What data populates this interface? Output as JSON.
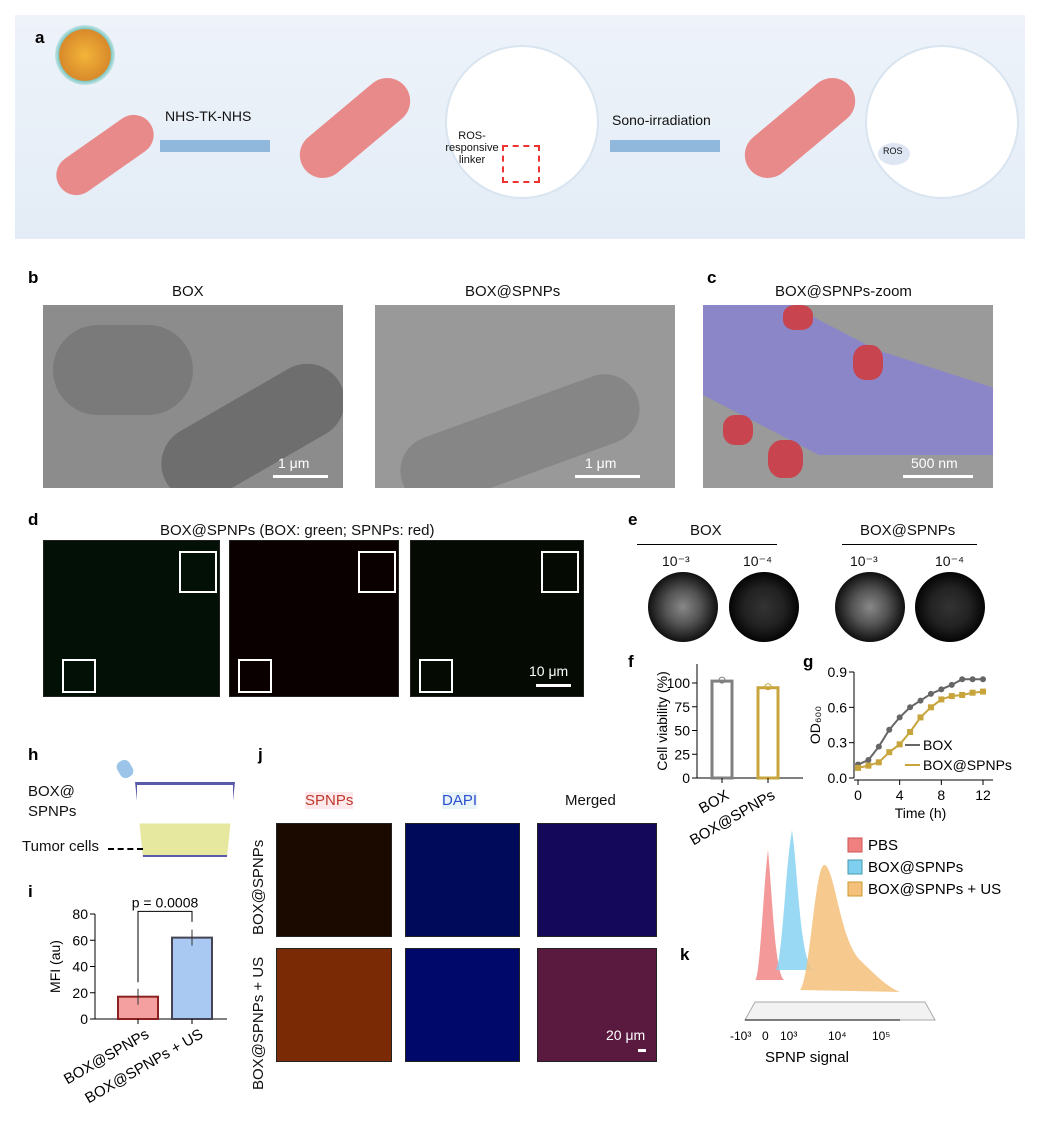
{
  "panel_labels": [
    "a",
    "b",
    "c",
    "d",
    "e",
    "f",
    "g",
    "h",
    "i",
    "j",
    "k"
  ],
  "a": {
    "linker_label": "NHS-TK-NHS",
    "ros_linker": "ROS-responsive linker",
    "step2": "Sono-irradiation",
    "ros": "ROS"
  },
  "b": {
    "title1": "BOX",
    "title2": "BOX@SPNPs",
    "scale1": "1 μm",
    "scale2": "1 μm"
  },
  "c": {
    "title": "BOX@SPNPs-zoom",
    "scale": "500 nm"
  },
  "d": {
    "title": "BOX@SPNPs (BOX: green; SPNPs: red)",
    "scale": "10 μm"
  },
  "e": {
    "group1": "BOX",
    "group2": "BOX@SPNPs",
    "dil1": "10⁻³",
    "dil2": "10⁻⁴"
  },
  "h": {
    "label1": "BOX@",
    "label2": "SPNPs",
    "label3": "Tumor cells"
  },
  "j": {
    "col1": "SPNPs",
    "col2": "DAPI",
    "col3": "Merged",
    "row1": "BOX@SPNPs",
    "row2": "BOX@SPNPs + US",
    "scale": "20 μm"
  },
  "k": {
    "legend": [
      "PBS",
      "BOX@SPNPs",
      "BOX@SPNPs + US"
    ],
    "colors": [
      "#f08080",
      "#7fd0f0",
      "#f5c07a"
    ],
    "xlabel": "SPNP signal",
    "ticks": [
      "-10³",
      "0",
      "10³",
      "10⁴",
      "10⁵"
    ]
  },
  "chart_data": [
    {
      "panel": "f",
      "type": "bar",
      "categories": [
        "BOX",
        "BOX@SPNPs"
      ],
      "values": [
        102,
        95
      ],
      "ylabel": "Cell viability (%)",
      "ylim": [
        0,
        120
      ],
      "yticks": [
        "0",
        "25",
        "50",
        "75",
        "100"
      ],
      "colors": [
        "#808080",
        "#c8a53c"
      ]
    },
    {
      "panel": "g",
      "type": "line",
      "xlabel": "Time (h)",
      "ylabel": "OD600",
      "xlim": [
        0,
        12
      ],
      "ylim": [
        0,
        0.9
      ],
      "xticks": [
        "0",
        "4",
        "8",
        "12"
      ],
      "yticks": [
        "0.0",
        "0.3",
        "0.6",
        "0.9"
      ],
      "x": [
        0,
        1,
        2,
        3,
        4,
        5,
        6,
        7,
        8,
        9,
        10,
        11,
        12
      ],
      "series": [
        {
          "name": "BOX",
          "color": "#666666",
          "values": [
            0.12,
            0.16,
            0.28,
            0.43,
            0.54,
            0.63,
            0.69,
            0.75,
            0.79,
            0.83,
            0.88,
            0.88,
            0.88
          ]
        },
        {
          "name": "BOX@SPNPs",
          "color": "#c8a53c",
          "values": [
            0.09,
            0.11,
            0.14,
            0.23,
            0.3,
            0.41,
            0.54,
            0.63,
            0.7,
            0.73,
            0.74,
            0.76,
            0.77
          ]
        }
      ]
    },
    {
      "panel": "i",
      "type": "bar",
      "categories": [
        "BOX@SPNPs",
        "BOX@SPNPs + US"
      ],
      "values": [
        17,
        62
      ],
      "ylabel": "MFI (au)",
      "ylim": [
        0,
        80
      ],
      "yticks": [
        "0",
        "20",
        "40",
        "60",
        "80"
      ],
      "colors": [
        "#f4a0a0",
        "#a9c8f2"
      ],
      "annotation": "p = 0.0008"
    }
  ]
}
